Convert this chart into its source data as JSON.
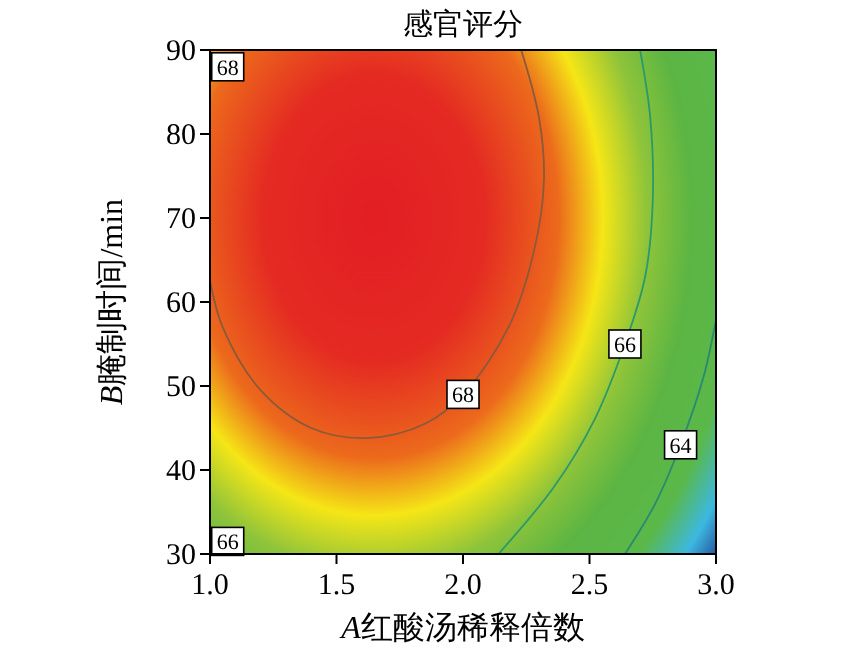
{
  "chart_data": {
    "type": "line",
    "title": "感官评分",
    "xlabel": "A红酸汤稀释倍数",
    "ylabel": "B腌制时间/min",
    "xlim": [
      1,
      3
    ],
    "xticks": [
      {
        "value": 1,
        "label": "1.0"
      },
      {
        "value": 1.5,
        "label": "1.5"
      },
      {
        "value": 2,
        "label": "2.0"
      },
      {
        "value": 2.5,
        "label": "2.5"
      },
      {
        "value": 3,
        "label": "3.0"
      }
    ],
    "ylim": [
      30,
      90
    ],
    "yticks": [
      30,
      40,
      50,
      60,
      70,
      80,
      90
    ],
    "grid": false,
    "line_style": "solid",
    "series": [
      {
        "color": "#8a5a3a",
        "x": [
          2.23,
          2.3,
          2.32,
          2.28,
          2.18,
          2.0,
          1.85,
          1.62,
          1.4,
          1.2,
          1.05,
          1.0
        ],
        "values": [
          90,
          82,
          74.5,
          66,
          57,
          49,
          45.5,
          43.8,
          45,
          49.5,
          57,
          62.6
        ]
      },
      {
        "color": "#2a9a6a",
        "x": [
          2.7,
          2.74,
          2.75,
          2.72,
          2.64,
          2.52,
          2.36,
          2.14
        ],
        "values": [
          90,
          82,
          72,
          63,
          55,
          46,
          38,
          30
        ]
      },
      {
        "color": "#2a8a70",
        "x": [
          3.0,
          2.95,
          2.86,
          2.76,
          2.64
        ],
        "values": [
          57.9,
          51,
          43,
          36,
          30
        ]
      }
    ],
    "annotations": [
      {
        "text": "68",
        "x": 1.07,
        "y": 88
      },
      {
        "text": "68",
        "x": 2.0,
        "y": 49
      },
      {
        "text": "66",
        "x": 2.64,
        "y": 55
      },
      {
        "text": "66",
        "x": 1.07,
        "y": 31.5
      },
      {
        "text": "64",
        "x": 2.86,
        "y": 43
      }
    ]
  }
}
